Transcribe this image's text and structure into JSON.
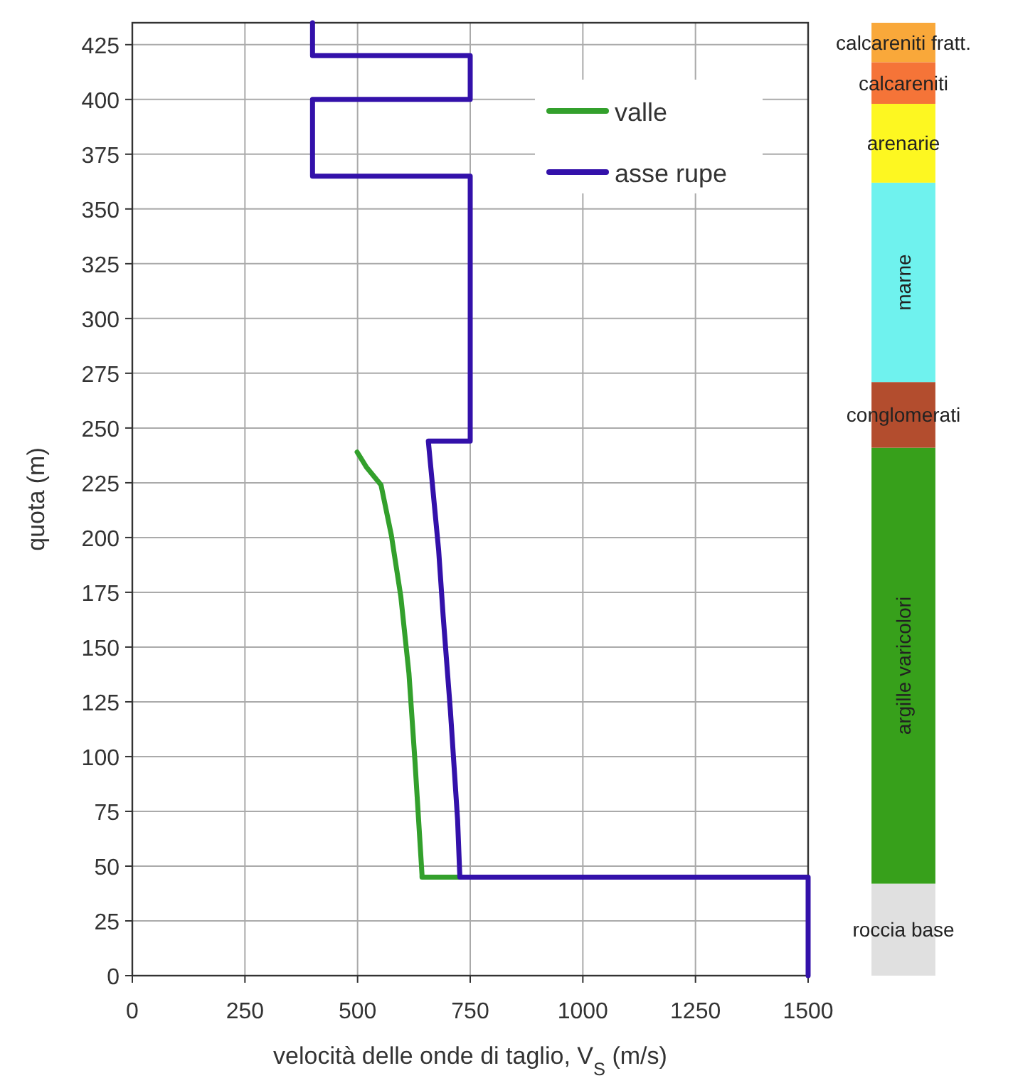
{
  "chart_data": [
    {
      "type": "line",
      "xlabel": "velocità delle onde di taglio, V$_{S}$ (m/s)",
      "ylabel": "quota (m)",
      "xlim": [
        0,
        1500
      ],
      "xticks": [
        0,
        250,
        500,
        750,
        1000,
        1250,
        1500
      ],
      "ylim": [
        0,
        435
      ],
      "yticks": [
        0,
        25,
        50,
        75,
        100,
        125,
        150,
        175,
        200,
        225,
        250,
        275,
        300,
        325,
        350,
        375,
        400,
        425
      ],
      "grid": true,
      "legend": "top right",
      "series": [
        {
          "name": "valle",
          "color": "#33a02c",
          "x": [
            499,
            520,
            552,
            575,
            596,
            614,
            627,
            643,
            643,
            727
          ],
          "values": [
            239,
            232,
            224,
            201,
            173,
            138,
            99,
            46,
            45,
            45
          ]
        },
        {
          "name": "asse rupe",
          "color": "#3311aa",
          "x": [
            400,
            400,
            750,
            750,
            400,
            400,
            750,
            750,
            657,
            680,
            690,
            706,
            722,
            727,
            1500,
            1500
          ],
          "values": [
            435,
            420,
            420,
            400,
            400,
            365,
            365,
            244,
            244,
            194,
            164,
            121,
            71,
            45,
            45,
            0
          ]
        }
      ]
    },
    {
      "type": "bar",
      "stacked": true,
      "categories": [
        null
      ],
      "ylim": [
        0,
        435
      ],
      "series": [
        {
          "name": "roccia base",
          "color": "#e0e0e0",
          "values": [
            42
          ]
        },
        {
          "name": "argille varicolori",
          "color": "#37a01b",
          "values": [
            199
          ]
        },
        {
          "name": "conglomerati",
          "color": "#b34d2e",
          "values": [
            30
          ]
        },
        {
          "name": "marne",
          "color": "#6ff2ee",
          "values": [
            91
          ]
        },
        {
          "name": "arenarie",
          "color": "#fdf721",
          "values": [
            36
          ]
        },
        {
          "name": "calcareniti",
          "color": "#f57438",
          "values": [
            19
          ]
        },
        {
          "name": "calcareniti fratt.",
          "color": "#f9a83a",
          "values": [
            18
          ]
        }
      ]
    }
  ]
}
